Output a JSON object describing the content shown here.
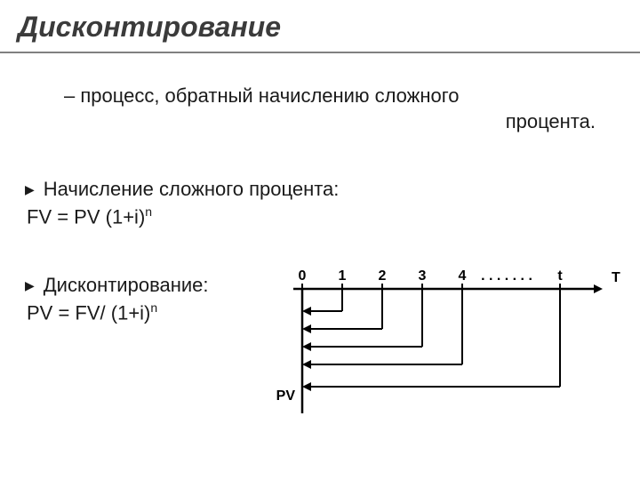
{
  "title": "Дисконтирование",
  "subtitle_line1": "– процесс, обратный начислению сложного",
  "subtitle_line2": "процента.",
  "section1": {
    "heading": "Начисление сложного процента:",
    "formula_prefix": "FV = PV (1+i)",
    "formula_sup": "n"
  },
  "section2": {
    "heading": "Дисконтирование:",
    "formula_prefix": "PV = FV/ (1+i)",
    "formula_sup": "n"
  },
  "diagram": {
    "axis_label_T": "T",
    "axis_label_PV": "PV",
    "ticks": [
      "0",
      "1",
      "2",
      "3",
      "4",
      ". . . . . . .",
      "t"
    ],
    "stroke": "#000000",
    "font": "bold 16px Arial"
  },
  "colors": {
    "title": "#3b3b3b",
    "text": "#1a1a1a",
    "underline": "#808080",
    "bg": "#ffffff"
  }
}
